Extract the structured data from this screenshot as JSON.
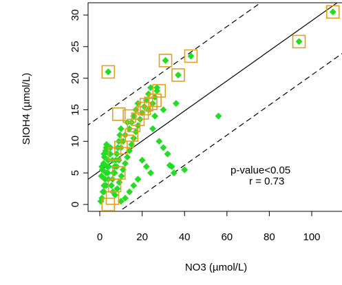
{
  "chart_data": {
    "type": "scatter",
    "xlabel": "NO3 (µmol/L)",
    "ylabel": "SIOH4 (µmol/L)",
    "xlim": [
      -5,
      110
    ],
    "ylim": [
      -1,
      31
    ],
    "xticks": [
      "0",
      "20",
      "40",
      "60",
      "80",
      "100"
    ],
    "yticks": [
      "0",
      "5",
      "10",
      "15",
      "20",
      "25",
      "30"
    ],
    "annotation": {
      "line1": "p-value<0.05",
      "line2": "r =  0.73"
    },
    "colors": {
      "points": "#22dd22",
      "markers": "#e0a020",
      "line": "#000000"
    },
    "regression": {
      "slope": 0.238,
      "intercept": 5.3
    },
    "prediction_band_offset": 8.6,
    "series": [
      {
        "kind": "filled-diamond",
        "points": [
          [
            0.5,
            0.5
          ],
          [
            1,
            1
          ],
          [
            1.5,
            2
          ],
          [
            2,
            3
          ],
          [
            2.5,
            4
          ],
          [
            3,
            5
          ],
          [
            3.5,
            6
          ],
          [
            4,
            7
          ],
          [
            4.5,
            8
          ],
          [
            5,
            9
          ],
          [
            0.8,
            4.5
          ],
          [
            1.2,
            5.5
          ],
          [
            1.8,
            6.5
          ],
          [
            2.2,
            7.5
          ],
          [
            2.8,
            8.5
          ],
          [
            3.2,
            9.5
          ],
          [
            3.8,
            5
          ],
          [
            4.2,
            6
          ],
          [
            5.5,
            3
          ],
          [
            6,
            4
          ],
          [
            6.5,
            5
          ],
          [
            7,
            6
          ],
          [
            7.5,
            7
          ],
          [
            8,
            8
          ],
          [
            8.5,
            9
          ],
          [
            9,
            10
          ],
          [
            9.5,
            11
          ],
          [
            10,
            12
          ],
          [
            6.2,
            2
          ],
          [
            7.2,
            1.5
          ],
          [
            8.2,
            2.5
          ],
          [
            9.2,
            3.5
          ],
          [
            10.2,
            4.5
          ],
          [
            11,
            5.5
          ],
          [
            12,
            6.5
          ],
          [
            13,
            7.5
          ],
          [
            14,
            8.5
          ],
          [
            15,
            9.5
          ],
          [
            16,
            10.5
          ],
          [
            17,
            11.5
          ],
          [
            18,
            12.5
          ],
          [
            19,
            13.5
          ],
          [
            20,
            14.5
          ],
          [
            21,
            15.5
          ],
          [
            22,
            16.5
          ],
          [
            23,
            17.5
          ],
          [
            24,
            18.5
          ],
          [
            25,
            16
          ],
          [
            26,
            17
          ],
          [
            27,
            18
          ],
          [
            14,
            12
          ],
          [
            15,
            13
          ],
          [
            16,
            14
          ],
          [
            17,
            15
          ],
          [
            18,
            16
          ],
          [
            12,
            11
          ],
          [
            13,
            13
          ],
          [
            11,
            10
          ],
          [
            10,
            9
          ],
          [
            9,
            7
          ],
          [
            8,
            6
          ],
          [
            7,
            5
          ],
          [
            6,
            7
          ],
          [
            5,
            8
          ],
          [
            4,
            4
          ],
          [
            3,
            3
          ],
          [
            2,
            2
          ],
          [
            1,
            6
          ],
          [
            2,
            8
          ],
          [
            3,
            9
          ],
          [
            20,
            7
          ],
          [
            22,
            6
          ],
          [
            24,
            5
          ],
          [
            18,
            4
          ],
          [
            16,
            3
          ],
          [
            14,
            2
          ],
          [
            12,
            1
          ],
          [
            10,
            0.5
          ],
          [
            25,
            12
          ],
          [
            28,
            10
          ],
          [
            30,
            9
          ],
          [
            32,
            8
          ],
          [
            34,
            6
          ],
          [
            35,
            5
          ],
          [
            30,
            15
          ],
          [
            36,
            16
          ],
          [
            40,
            5.5
          ],
          [
            33,
            6.2
          ],
          [
            56,
            14
          ],
          [
            94,
            25.8
          ],
          [
            110,
            30.5
          ],
          [
            4,
            21
          ],
          [
            31,
            22.8
          ],
          [
            43,
            23.5
          ],
          [
            37,
            20.5
          ],
          [
            27,
            18.5
          ],
          [
            26,
            14
          ],
          [
            23,
            15
          ]
        ]
      },
      {
        "kind": "open-square",
        "points": [
          [
            4,
            21
          ],
          [
            31,
            22.8
          ],
          [
            43,
            23.5
          ],
          [
            37,
            20.5
          ],
          [
            94,
            25.8
          ],
          [
            110,
            30.5
          ],
          [
            9,
            14.3
          ],
          [
            14,
            14
          ],
          [
            18,
            13.5
          ],
          [
            20,
            14.5
          ],
          [
            21,
            15.2
          ],
          [
            22,
            15.8
          ],
          [
            24,
            16
          ],
          [
            26,
            16.5
          ],
          [
            28,
            18
          ],
          [
            16,
            12.5
          ],
          [
            15,
            11
          ],
          [
            13,
            10
          ],
          [
            10,
            9
          ],
          [
            7,
            8
          ],
          [
            9,
            5
          ],
          [
            7,
            3
          ],
          [
            6,
            1
          ],
          [
            4,
            0
          ]
        ]
      }
    ]
  }
}
